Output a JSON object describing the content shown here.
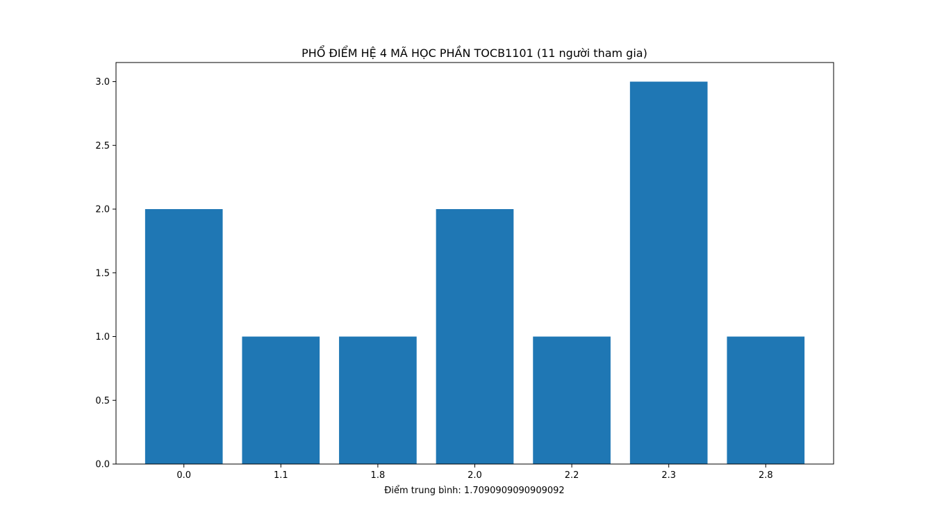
{
  "chart_data": {
    "type": "bar",
    "title": "PHỔ ĐIỂM HỆ 4 MÃ HỌC PHẦN TOCB1101 (11 người tham gia)",
    "xlabel": "Điểm trung bình: 1.7090909090909092",
    "ylabel": "",
    "categories": [
      "0.0",
      "1.1",
      "1.8",
      "2.0",
      "2.2",
      "2.3",
      "2.8"
    ],
    "values": [
      2,
      1,
      1,
      2,
      1,
      3,
      1
    ],
    "ylim": [
      0,
      3.15
    ],
    "yticks": [
      "0.0",
      "0.5",
      "1.0",
      "1.5",
      "2.0",
      "2.5",
      "3.0"
    ],
    "grid": false,
    "bar_color": "#1f77b4"
  }
}
